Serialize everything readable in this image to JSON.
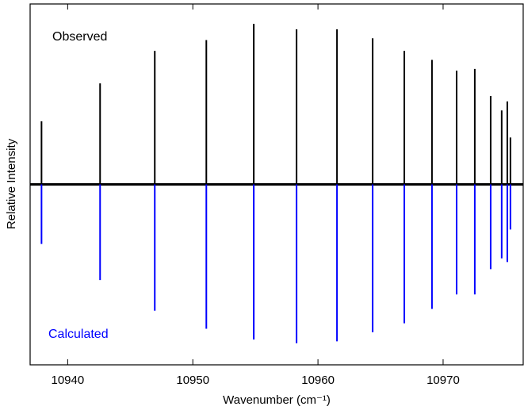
{
  "chart_data": {
    "type": "stick",
    "x_label": "Wavenumber (cm⁻¹)",
    "y_label": "Relative Intensity",
    "x": [
      10937.91,
      10942.59,
      10946.96,
      10951.08,
      10954.87,
      10958.29,
      10961.52,
      10964.37,
      10966.9,
      10969.11,
      10971.08,
      10972.53,
      10973.8,
      10974.68,
      10975.13,
      10975.38
    ],
    "series": [
      {
        "name": "Observed",
        "color": "#000000",
        "values": [
          0.35,
          0.56,
          0.74,
          0.8,
          0.89,
          0.86,
          0.86,
          0.81,
          0.74,
          0.69,
          0.63,
          0.64,
          0.49,
          0.41,
          0.46,
          0.26
        ]
      },
      {
        "name": "Calculated",
        "color": "#0000ff",
        "values": [
          -0.33,
          -0.53,
          -0.7,
          -0.8,
          -0.86,
          -0.88,
          -0.87,
          -0.82,
          -0.77,
          -0.69,
          -0.61,
          -0.61,
          -0.47,
          -0.41,
          -0.43,
          -0.25
        ]
      }
    ],
    "xlim": [
      10937.0,
      10976.4
    ],
    "ylim": [
      -1,
      1
    ],
    "xticks": [
      10940,
      10950,
      10960,
      10970
    ]
  }
}
